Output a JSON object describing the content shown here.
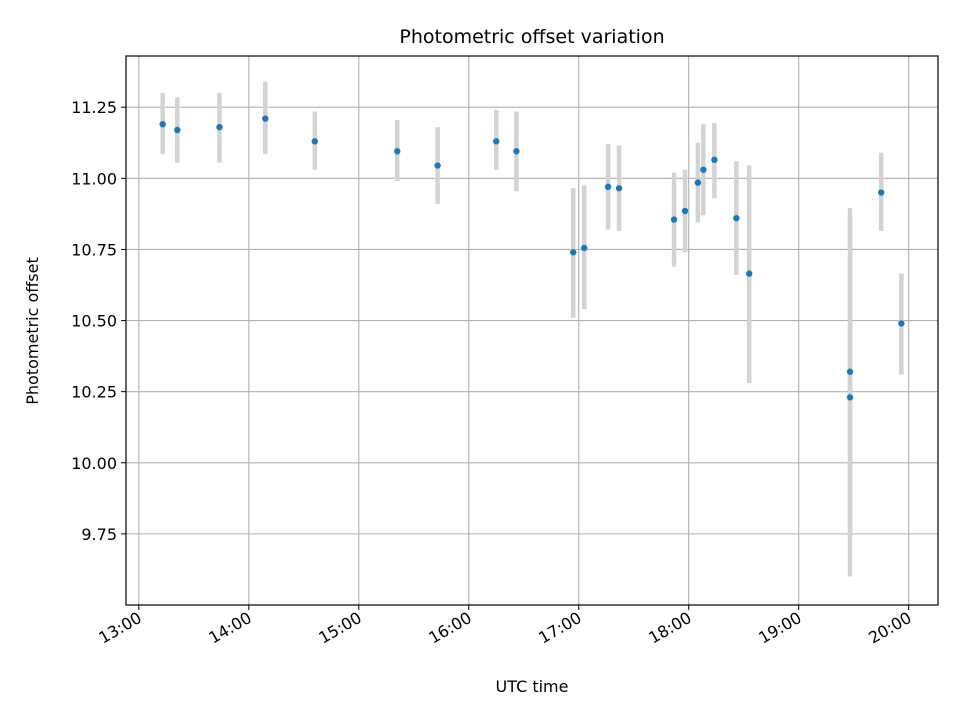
{
  "chart_data": {
    "type": "scatter",
    "title": "Photometric offset variation",
    "xlabel": "UTC time",
    "ylabel": "Photometric offset",
    "x_ticks": [
      "13:00",
      "14:00",
      "15:00",
      "16:00",
      "17:00",
      "18:00",
      "19:00",
      "20:00"
    ],
    "y_ticks": [
      "9.75",
      "10.00",
      "10.25",
      "10.50",
      "10.75",
      "11.00",
      "11.25"
    ],
    "xlim": [
      "12:53",
      "20:16"
    ],
    "ylim": [
      9.5,
      11.43
    ],
    "grid": true,
    "points": [
      {
        "x": "13:13",
        "y": 11.19,
        "err_lo": 11.085,
        "err_hi": 11.3
      },
      {
        "x": "13:21",
        "y": 11.17,
        "err_lo": 11.055,
        "err_hi": 11.285
      },
      {
        "x": "13:44",
        "y": 11.18,
        "err_lo": 11.055,
        "err_hi": 11.3
      },
      {
        "x": "14:09",
        "y": 11.21,
        "err_lo": 11.085,
        "err_hi": 11.34
      },
      {
        "x": "14:36",
        "y": 11.13,
        "err_lo": 11.03,
        "err_hi": 11.235
      },
      {
        "x": "15:21",
        "y": 11.095,
        "err_lo": 10.99,
        "err_hi": 11.205
      },
      {
        "x": "15:43",
        "y": 11.045,
        "err_lo": 10.91,
        "err_hi": 11.18
      },
      {
        "x": "16:15",
        "y": 11.13,
        "err_lo": 11.03,
        "err_hi": 11.24
      },
      {
        "x": "16:26",
        "y": 11.095,
        "err_lo": 10.955,
        "err_hi": 11.235
      },
      {
        "x": "16:57",
        "y": 10.74,
        "err_lo": 10.51,
        "err_hi": 10.965
      },
      {
        "x": "17:03",
        "y": 10.755,
        "err_lo": 10.54,
        "err_hi": 10.975
      },
      {
        "x": "17:16",
        "y": 10.97,
        "err_lo": 10.82,
        "err_hi": 11.12
      },
      {
        "x": "17:22",
        "y": 10.965,
        "err_lo": 10.815,
        "err_hi": 11.115
      },
      {
        "x": "17:52",
        "y": 10.855,
        "err_lo": 10.69,
        "err_hi": 11.02
      },
      {
        "x": "17:58",
        "y": 10.885,
        "err_lo": 10.74,
        "err_hi": 11.03
      },
      {
        "x": "18:05",
        "y": 10.985,
        "err_lo": 10.845,
        "err_hi": 11.125
      },
      {
        "x": "18:08",
        "y": 11.03,
        "err_lo": 10.87,
        "err_hi": 11.19
      },
      {
        "x": "18:14",
        "y": 11.065,
        "err_lo": 10.93,
        "err_hi": 11.195
      },
      {
        "x": "18:26",
        "y": 10.86,
        "err_lo": 10.66,
        "err_hi": 11.06
      },
      {
        "x": "18:33",
        "y": 10.665,
        "err_lo": 10.28,
        "err_hi": 11.045
      },
      {
        "x": "19:28",
        "y": 10.32,
        "err_lo": 9.745,
        "err_hi": 10.895
      },
      {
        "x": "19:28",
        "y": 10.23,
        "err_lo": 9.6,
        "err_hi": 10.86
      },
      {
        "x": "19:45",
        "y": 10.95,
        "err_lo": 10.815,
        "err_hi": 11.09
      },
      {
        "x": "19:56",
        "y": 10.49,
        "err_lo": 10.31,
        "err_hi": 10.665
      }
    ],
    "colors": {
      "point": "#1f77b4",
      "errorbar": "#d3d3d3",
      "grid": "#b0b0b0"
    }
  }
}
